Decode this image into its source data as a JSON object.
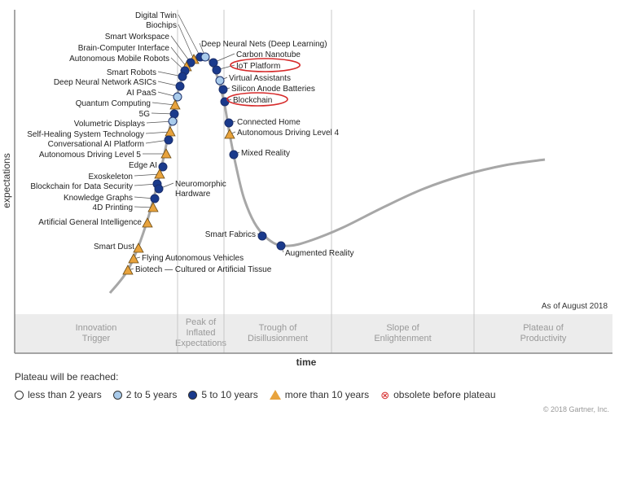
{
  "chart_data": {
    "type": "hype-cycle",
    "title": "",
    "ylabel": "expectations",
    "xlabel": "time",
    "date_note": "As of August 2018",
    "phases": [
      "Innovation Trigger",
      "Peak of Inflated Expectations",
      "Trough of Disillusionment",
      "Slope of Enlightenment",
      "Plateau of Productivity"
    ],
    "plateau_title": "Plateau will be reached:",
    "legend": [
      {
        "key": "lt2",
        "label": "less than 2 years",
        "symbol": "circle",
        "color": "#ffffff"
      },
      {
        "key": "2to5",
        "label": "2 to 5 years",
        "symbol": "circle",
        "color": "#a9cbeb"
      },
      {
        "key": "5to10",
        "label": "5 to 10 years",
        "symbol": "circle",
        "color": "#1a3a8c"
      },
      {
        "key": "gt10",
        "label": "more than 10 years",
        "symbol": "triangle",
        "color": "#e8a33d"
      },
      {
        "key": "obsolete",
        "label": "obsolete before plateau",
        "symbol": "x-circle",
        "color": "#d62b2b"
      }
    ],
    "technologies": [
      {
        "name": "Digital Twin",
        "t": 0.258,
        "plateau": "5to10",
        "side": "left"
      },
      {
        "name": "Biochips",
        "t": 0.246,
        "plateau": "gt10",
        "side": "left"
      },
      {
        "name": "Smart Workspace",
        "t": 0.232,
        "plateau": "5to10",
        "side": "left"
      },
      {
        "name": "Brain-Computer Interface",
        "t": 0.222,
        "plateau": "gt10",
        "side": "left"
      },
      {
        "name": "Autonomous Mobile Robots",
        "t": 0.213,
        "plateau": "5to10",
        "side": "left"
      },
      {
        "name": "Smart Robots",
        "t": 0.198,
        "plateau": "5to10",
        "side": "left"
      },
      {
        "name": "Deep Neural Network ASICs",
        "t": 0.19,
        "plateau": "5to10",
        "side": "left"
      },
      {
        "name": "AI PaaS",
        "t": 0.182,
        "plateau": "2to5",
        "side": "left"
      },
      {
        "name": "Quantum Computing",
        "t": 0.176,
        "plateau": "gt10",
        "side": "left"
      },
      {
        "name": "5G",
        "t": 0.17,
        "plateau": "5to10",
        "side": "left"
      },
      {
        "name": "Volumetric Displays",
        "t": 0.163,
        "plateau": "2to5",
        "side": "left"
      },
      {
        "name": "Self-Healing System Technology",
        "t": 0.155,
        "plateau": "gt10",
        "side": "left"
      },
      {
        "name": "Conversational AI Platform",
        "t": 0.148,
        "plateau": "5to10",
        "side": "left"
      },
      {
        "name": "Autonomous Driving Level 5",
        "t": 0.142,
        "plateau": "gt10",
        "side": "left"
      },
      {
        "name": "Edge AI",
        "t": 0.133,
        "plateau": "5to10",
        "side": "left"
      },
      {
        "name": "Exoskeleton",
        "t": 0.126,
        "plateau": "gt10",
        "side": "left"
      },
      {
        "name": "Blockchain for Data Security",
        "t": 0.118,
        "plateau": "5to10",
        "side": "left"
      },
      {
        "name": "Neuromorphic Hardware",
        "t": 0.112,
        "plateau": "5to10",
        "side": "right"
      },
      {
        "name": "Knowledge Graphs",
        "t": 0.106,
        "plateau": "5to10",
        "side": "left"
      },
      {
        "name": "4D Printing",
        "t": 0.1,
        "plateau": "gt10",
        "side": "left"
      },
      {
        "name": "Artificial General Intelligence",
        "t": 0.088,
        "plateau": "gt10",
        "side": "left"
      },
      {
        "name": "Smart Dust",
        "t": 0.068,
        "plateau": "gt10",
        "side": "left"
      },
      {
        "name": "Flying Autonomous Vehicles",
        "t": 0.056,
        "plateau": "gt10",
        "side": "right"
      },
      {
        "name": "Biotech — Cultured or Artificial Tissue",
        "t": 0.045,
        "plateau": "gt10",
        "side": "right"
      },
      {
        "name": "Deep Neural Nets (Deep Learning)",
        "t": 0.286,
        "plateau": "2to5",
        "side": "right"
      },
      {
        "name": "Carbon Nanotube",
        "t": 0.302,
        "plateau": "5to10",
        "side": "right"
      },
      {
        "name": "IoT Platform",
        "t": 0.313,
        "plateau": "5to10",
        "side": "right",
        "highlight": true
      },
      {
        "name": "Virtual Assistants",
        "t": 0.322,
        "plateau": "2to5",
        "side": "right"
      },
      {
        "name": "Silicon Anode Batteries",
        "t": 0.328,
        "plateau": "5to10",
        "side": "right"
      },
      {
        "name": "Blockchain",
        "t": 0.333,
        "plateau": "5to10",
        "side": "right",
        "highlight": true
      },
      {
        "name": "Connected Home",
        "t": 0.345,
        "plateau": "5to10",
        "side": "right"
      },
      {
        "name": "Autonomous Driving Level 4",
        "t": 0.352,
        "plateau": "gt10",
        "side": "right"
      },
      {
        "name": "Mixed Reality",
        "t": 0.362,
        "plateau": "5to10",
        "side": "right"
      },
      {
        "name": "Smart Fabrics",
        "t": 0.432,
        "plateau": "5to10",
        "side": "left"
      },
      {
        "name": "Augmented Reality",
        "t": 0.468,
        "plateau": "5to10",
        "side": "right"
      }
    ]
  },
  "footer": {
    "copyright": "© 2018 Gartner, Inc."
  }
}
